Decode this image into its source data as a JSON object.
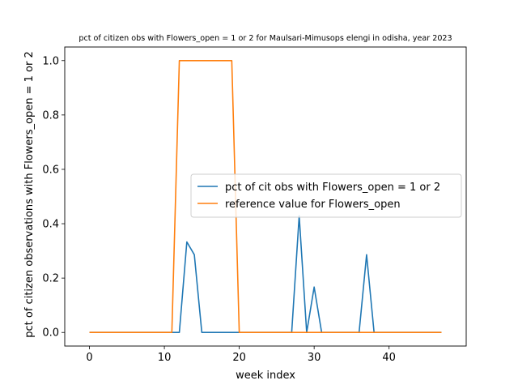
{
  "chart_data": {
    "type": "line",
    "title": "pct of citizen obs with Flowers_open = 1 or 2 for Maulsari-Mimusops elengi in odisha, year 2023",
    "xlabel": "week index",
    "ylabel": "pct of citizen observations with Flowers_open = 1 or 2",
    "xlim": [
      -3.3,
      50.3
    ],
    "ylim": [
      -0.05,
      1.05
    ],
    "xticks": [
      0,
      10,
      20,
      30,
      40
    ],
    "yticks": [
      0.0,
      0.2,
      0.4,
      0.6,
      0.8,
      1.0
    ],
    "grid": false,
    "legend_position": "center-right",
    "x": [
      0,
      1,
      2,
      3,
      4,
      5,
      6,
      7,
      8,
      9,
      10,
      11,
      12,
      13,
      14,
      15,
      16,
      17,
      18,
      19,
      20,
      21,
      22,
      23,
      24,
      25,
      26,
      27,
      28,
      29,
      30,
      31,
      32,
      33,
      34,
      35,
      36,
      37,
      38,
      39,
      40,
      41,
      42,
      43,
      44,
      45,
      46,
      47
    ],
    "series": [
      {
        "name": "pct of cit obs with Flowers_open = 1 or 2",
        "color": "#1f77b4",
        "values": [
          0,
          0,
          0,
          0,
          0,
          0,
          0,
          0,
          0,
          0,
          0,
          0,
          0,
          0.333,
          0.286,
          0,
          0,
          0,
          0,
          0,
          0,
          0,
          0,
          0,
          0,
          0,
          0,
          0,
          0.429,
          0,
          0.167,
          0,
          0,
          0,
          0,
          0,
          0,
          0.286,
          0,
          0,
          0,
          0,
          0,
          0,
          0,
          0,
          0,
          0
        ]
      },
      {
        "name": "reference value for Flowers_open",
        "color": "#ff7f0e",
        "values": [
          0,
          0,
          0,
          0,
          0,
          0,
          0,
          0,
          0,
          0,
          0,
          0,
          1,
          1,
          1,
          1,
          1,
          1,
          1,
          1,
          0,
          0,
          0,
          0,
          0,
          0,
          0,
          0,
          0,
          0,
          0,
          0,
          0,
          0,
          0,
          0,
          0,
          0,
          0,
          0,
          0,
          0,
          0,
          0,
          0,
          0,
          0,
          0
        ]
      }
    ]
  }
}
